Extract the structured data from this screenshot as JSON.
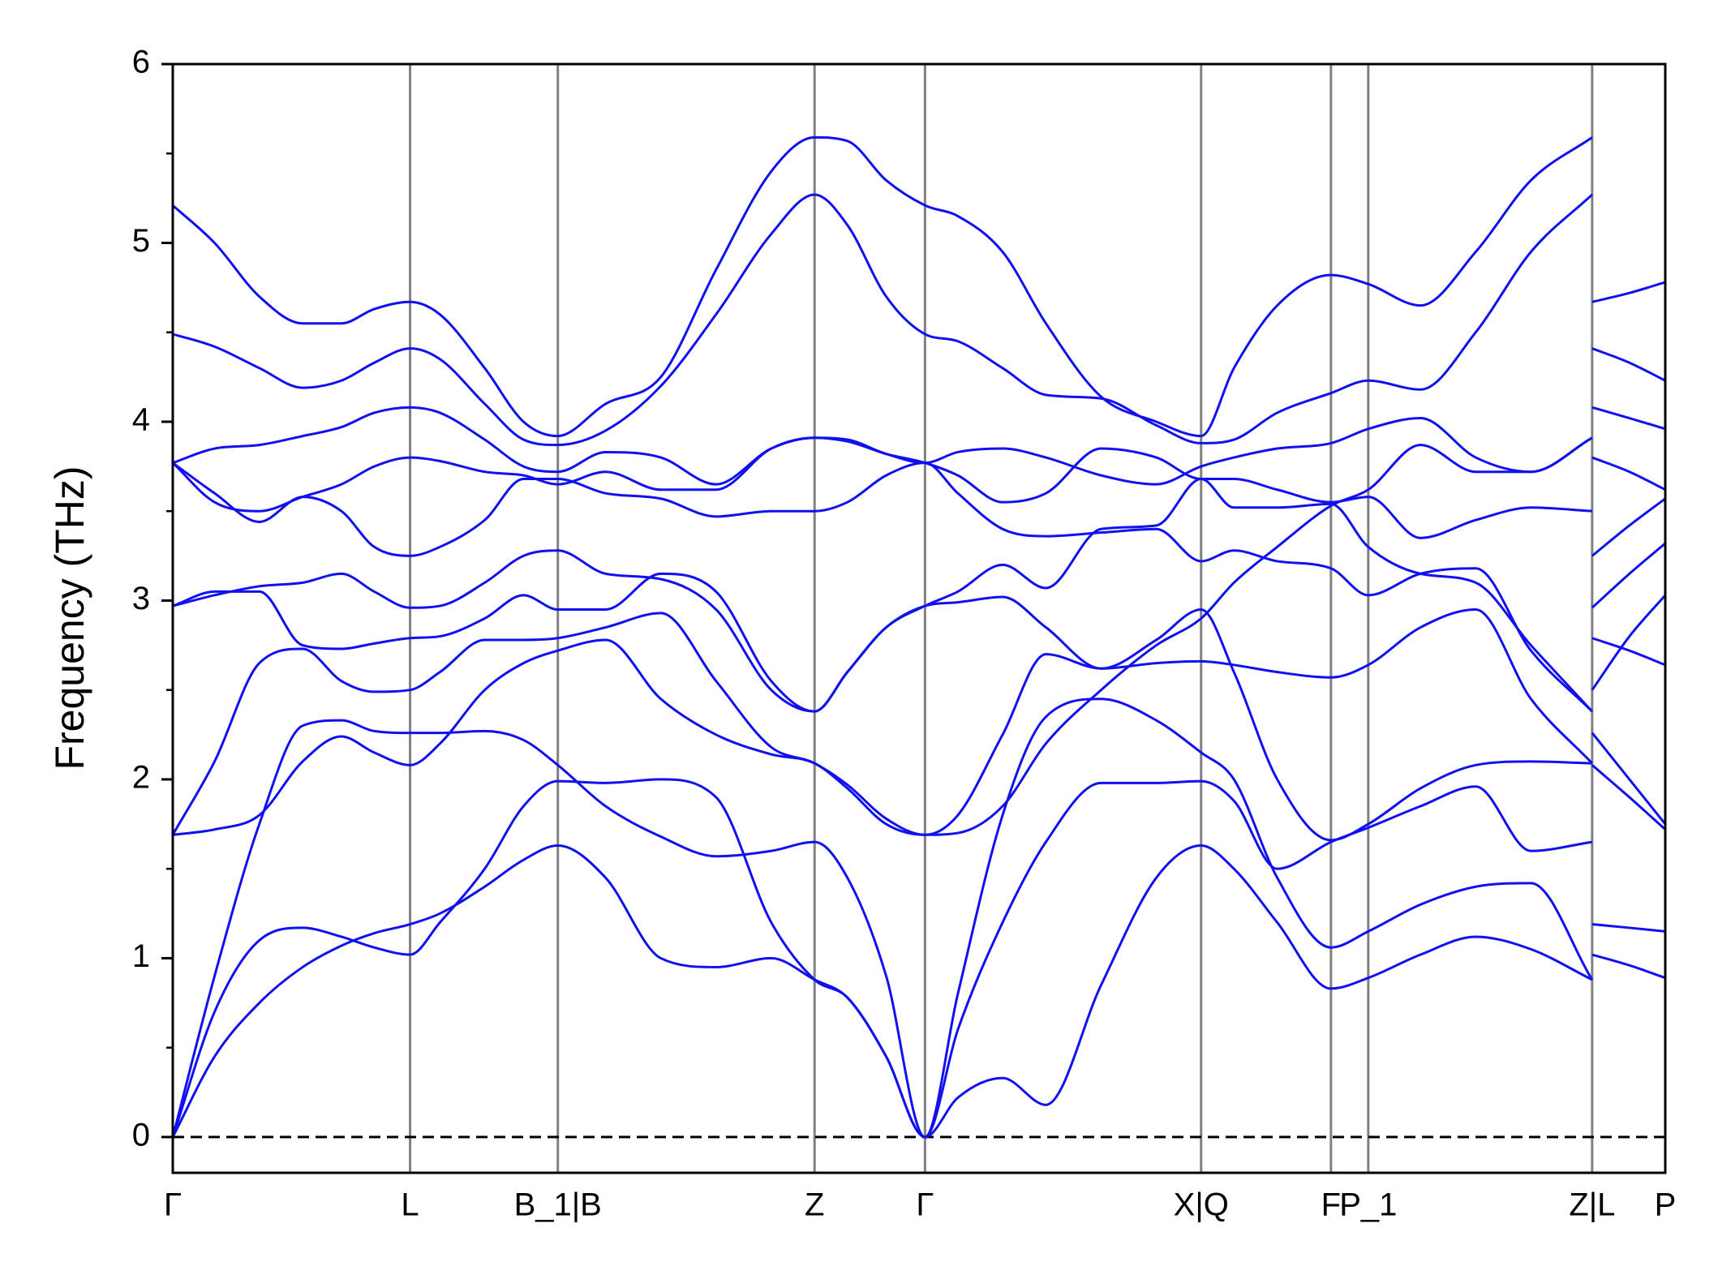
{
  "chart_data": {
    "type": "line",
    "y_label": "Frequency (THz)",
    "color": "#1010f0",
    "ylim": [
      -0.2,
      6
    ],
    "yticks": [
      0,
      1,
      2,
      3,
      4,
      5,
      6
    ],
    "yticks_minor": [
      0.5,
      1.5,
      2.5,
      3.5,
      4.5,
      5.5
    ],
    "xlim": [
      0,
      1
    ],
    "xticks": [
      {
        "value": 0,
        "label": "Γ"
      },
      {
        "value": 0.159,
        "label": "L"
      },
      {
        "value": 0.258,
        "label": "B_1|B"
      },
      {
        "value": 0.43,
        "label": "Z"
      },
      {
        "value": 0.504,
        "label": "Γ"
      },
      {
        "value": 0.689,
        "label": "X|Q"
      },
      {
        "value": 0.776,
        "label": "F"
      },
      {
        "value": 0.801,
        "label": "P_1"
      },
      {
        "value": 0.951,
        "label": "Z|L"
      },
      {
        "value": 1,
        "label": "P"
      }
    ],
    "grid_x": true,
    "hlines": [
      0
    ],
    "x": [
      0,
      0.028,
      0.058,
      0.087,
      0.113,
      0.135,
      0.159,
      0.179,
      0.209,
      0.235,
      0.258,
      0.29,
      0.327,
      0.364,
      0.401,
      0.43,
      0.452,
      0.478,
      0.504,
      0.526,
      0.556,
      0.585,
      0.622,
      0.659,
      0.689,
      0.711,
      0.74,
      0.776,
      0.801,
      0.836,
      0.873,
      0.91,
      0.951,
      0.951,
      0.951,
      0.976,
      1
    ],
    "series": [
      {
        "values": [
          0,
          0.45,
          0.75,
          0.95,
          1.07,
          1.14,
          1.19,
          1.25,
          1.4,
          1.55,
          1.63,
          1.45,
          1.0,
          0.95,
          1.0,
          0.88,
          0.78,
          0.45,
          0,
          0.22,
          0.33,
          0.18,
          0.85,
          1.45,
          1.63,
          1.5,
          1.2,
          0.83,
          0.89,
          1.02,
          1.12,
          1.05,
          0.88,
          null,
          1.02,
          0.96,
          0.89
        ]
      },
      {
        "values": [
          0,
          0.7,
          1.1,
          1.17,
          1.12,
          1.06,
          1.02,
          1.2,
          1.5,
          1.85,
          1.99,
          1.98,
          2.0,
          1.9,
          1.2,
          0.88,
          0.78,
          0.45,
          0,
          0.8,
          1.8,
          2.35,
          2.45,
          2.33,
          2.15,
          2.0,
          1.45,
          1.06,
          1.15,
          1.3,
          1.4,
          1.42,
          0.88,
          null,
          1.19,
          1.17,
          1.15
        ]
      },
      {
        "values": [
          0,
          0.9,
          1.75,
          2.3,
          2.33,
          2.27,
          2.26,
          2.26,
          2.27,
          2.22,
          2.08,
          1.85,
          1.68,
          1.57,
          1.6,
          1.65,
          1.45,
          0.9,
          0,
          0.6,
          1.2,
          1.65,
          1.98,
          1.98,
          1.99,
          1.88,
          1.5,
          1.65,
          1.73,
          1.85,
          1.96,
          1.6,
          1.65,
          null,
          2.08,
          1.9,
          1.72
        ]
      },
      {
        "values": [
          1.69,
          1.72,
          1.8,
          2.1,
          2.24,
          2.15,
          2.08,
          2.2,
          2.5,
          2.65,
          2.72,
          2.78,
          2.45,
          2.25,
          2.14,
          2.09,
          1.95,
          1.75,
          1.69,
          1.8,
          2.25,
          2.7,
          2.62,
          2.65,
          2.66,
          2.64,
          2.6,
          2.57,
          2.64,
          2.85,
          2.95,
          2.45,
          2.09,
          null,
          2.26,
          2.0,
          1.75
        ]
      },
      {
        "values": [
          1.69,
          2.1,
          2.65,
          2.73,
          2.55,
          2.49,
          2.5,
          2.6,
          2.78,
          2.78,
          2.79,
          2.85,
          2.93,
          2.55,
          2.18,
          2.09,
          1.97,
          1.78,
          1.69,
          1.7,
          1.85,
          2.2,
          2.5,
          2.75,
          2.9,
          3.1,
          3.3,
          3.53,
          3.62,
          3.87,
          3.72,
          3.72,
          3.91,
          null,
          2.5,
          2.8,
          3.03
        ]
      },
      {
        "values": [
          2.97,
          3.05,
          3.05,
          2.75,
          2.73,
          2.76,
          2.79,
          2.8,
          2.9,
          3.03,
          2.95,
          2.95,
          3.15,
          3.05,
          2.55,
          2.38,
          2.6,
          2.85,
          2.97,
          2.99,
          3.02,
          2.85,
          2.62,
          2.78,
          2.95,
          2.6,
          2.0,
          1.66,
          1.75,
          1.95,
          2.08,
          2.1,
          2.09,
          null,
          2.79,
          2.72,
          2.64
        ]
      },
      {
        "values": [
          2.97,
          3.03,
          3.08,
          3.1,
          3.15,
          3.05,
          2.96,
          2.97,
          3.1,
          3.25,
          3.28,
          3.15,
          3.12,
          2.95,
          2.5,
          2.38,
          2.6,
          2.85,
          2.97,
          3.05,
          3.2,
          3.07,
          3.4,
          3.42,
          3.68,
          3.52,
          3.52,
          3.54,
          3.3,
          3.15,
          3.1,
          2.75,
          2.38,
          null,
          2.96,
          3.15,
          3.32
        ]
      },
      {
        "values": [
          3.77,
          3.6,
          3.44,
          3.58,
          3.5,
          3.3,
          3.25,
          3.3,
          3.45,
          3.68,
          3.68,
          3.6,
          3.57,
          3.47,
          3.5,
          3.5,
          3.55,
          3.7,
          3.77,
          3.6,
          3.4,
          3.36,
          3.38,
          3.4,
          3.22,
          3.28,
          3.22,
          3.18,
          3.03,
          3.15,
          3.18,
          2.72,
          2.38,
          null,
          3.25,
          3.42,
          3.57
        ]
      },
      {
        "values": [
          3.77,
          3.55,
          3.5,
          3.58,
          3.65,
          3.75,
          3.8,
          3.78,
          3.72,
          3.7,
          3.65,
          3.72,
          3.62,
          3.62,
          3.85,
          3.91,
          3.89,
          3.82,
          3.77,
          3.7,
          3.55,
          3.6,
          3.85,
          3.8,
          3.68,
          3.68,
          3.62,
          3.55,
          3.58,
          3.35,
          3.45,
          3.52,
          3.5,
          null,
          3.8,
          3.72,
          3.62
        ]
      },
      {
        "values": [
          3.77,
          3.85,
          3.87,
          3.92,
          3.97,
          4.05,
          4.08,
          4.05,
          3.9,
          3.75,
          3.72,
          3.83,
          3.8,
          3.65,
          3.85,
          3.91,
          3.9,
          3.82,
          3.77,
          3.83,
          3.85,
          3.8,
          3.7,
          3.65,
          3.75,
          3.8,
          3.85,
          3.88,
          3.96,
          4.02,
          3.8,
          3.72,
          3.91,
          null,
          4.08,
          4.02,
          3.96
        ]
      },
      {
        "values": [
          4.49,
          4.42,
          4.3,
          4.19,
          4.23,
          4.33,
          4.41,
          4.35,
          4.1,
          3.9,
          3.87,
          3.95,
          4.2,
          4.6,
          5.05,
          5.27,
          5.1,
          4.7,
          4.49,
          4.45,
          4.3,
          4.15,
          4.13,
          3.98,
          3.88,
          3.9,
          4.05,
          4.16,
          4.23,
          4.18,
          4.5,
          4.95,
          5.27,
          null,
          4.41,
          4.33,
          4.23
        ]
      },
      {
        "values": [
          5.21,
          5.0,
          4.7,
          4.55,
          4.55,
          4.63,
          4.67,
          4.6,
          4.3,
          4.0,
          3.92,
          4.1,
          4.25,
          4.85,
          5.4,
          5.59,
          5.57,
          5.35,
          5.21,
          5.15,
          4.95,
          4.55,
          4.14,
          4.0,
          3.92,
          4.3,
          4.65,
          4.82,
          4.77,
          4.65,
          4.95,
          5.35,
          5.59,
          null,
          4.67,
          4.72,
          4.78
        ]
      }
    ]
  }
}
